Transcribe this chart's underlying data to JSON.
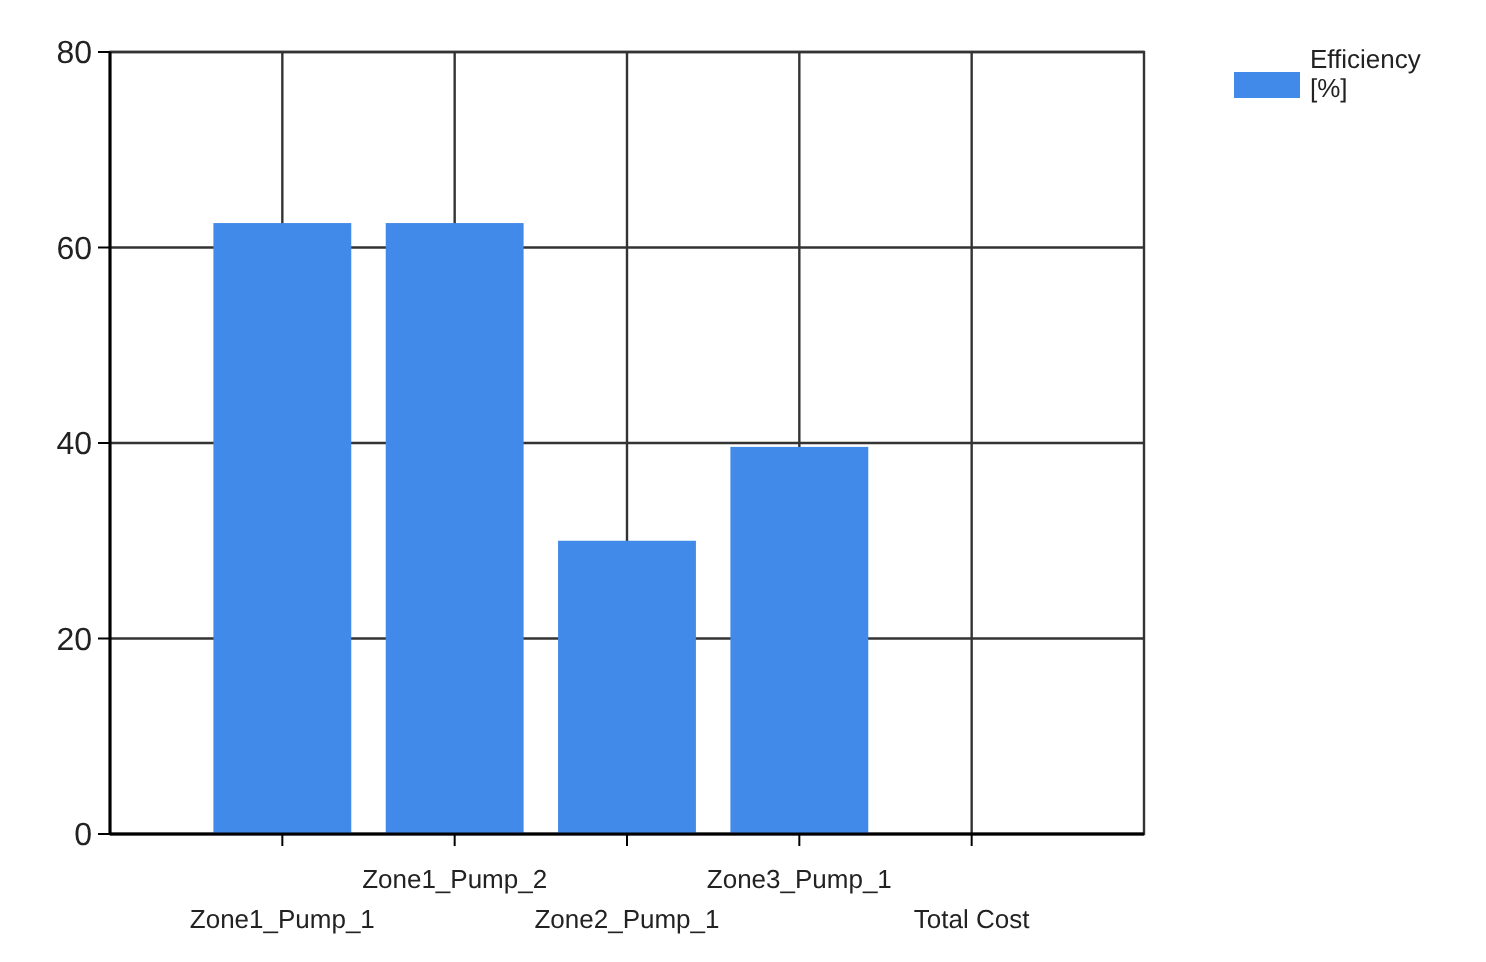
{
  "chart_data": {
    "type": "bar",
    "categories": [
      "Zone1_Pump_1",
      "Zone1_Pump_2",
      "Zone2_Pump_1",
      "Zone3_Pump_1",
      "Total Cost"
    ],
    "series": [
      {
        "name": "Efficiency [%]",
        "color": "#418ae9",
        "values": [
          62.5,
          62.5,
          30,
          39.6,
          null
        ]
      }
    ],
    "ylim": [
      0,
      80
    ],
    "yticks": [
      0,
      20,
      40,
      60,
      80
    ],
    "grid": true,
    "legend": "top right"
  }
}
